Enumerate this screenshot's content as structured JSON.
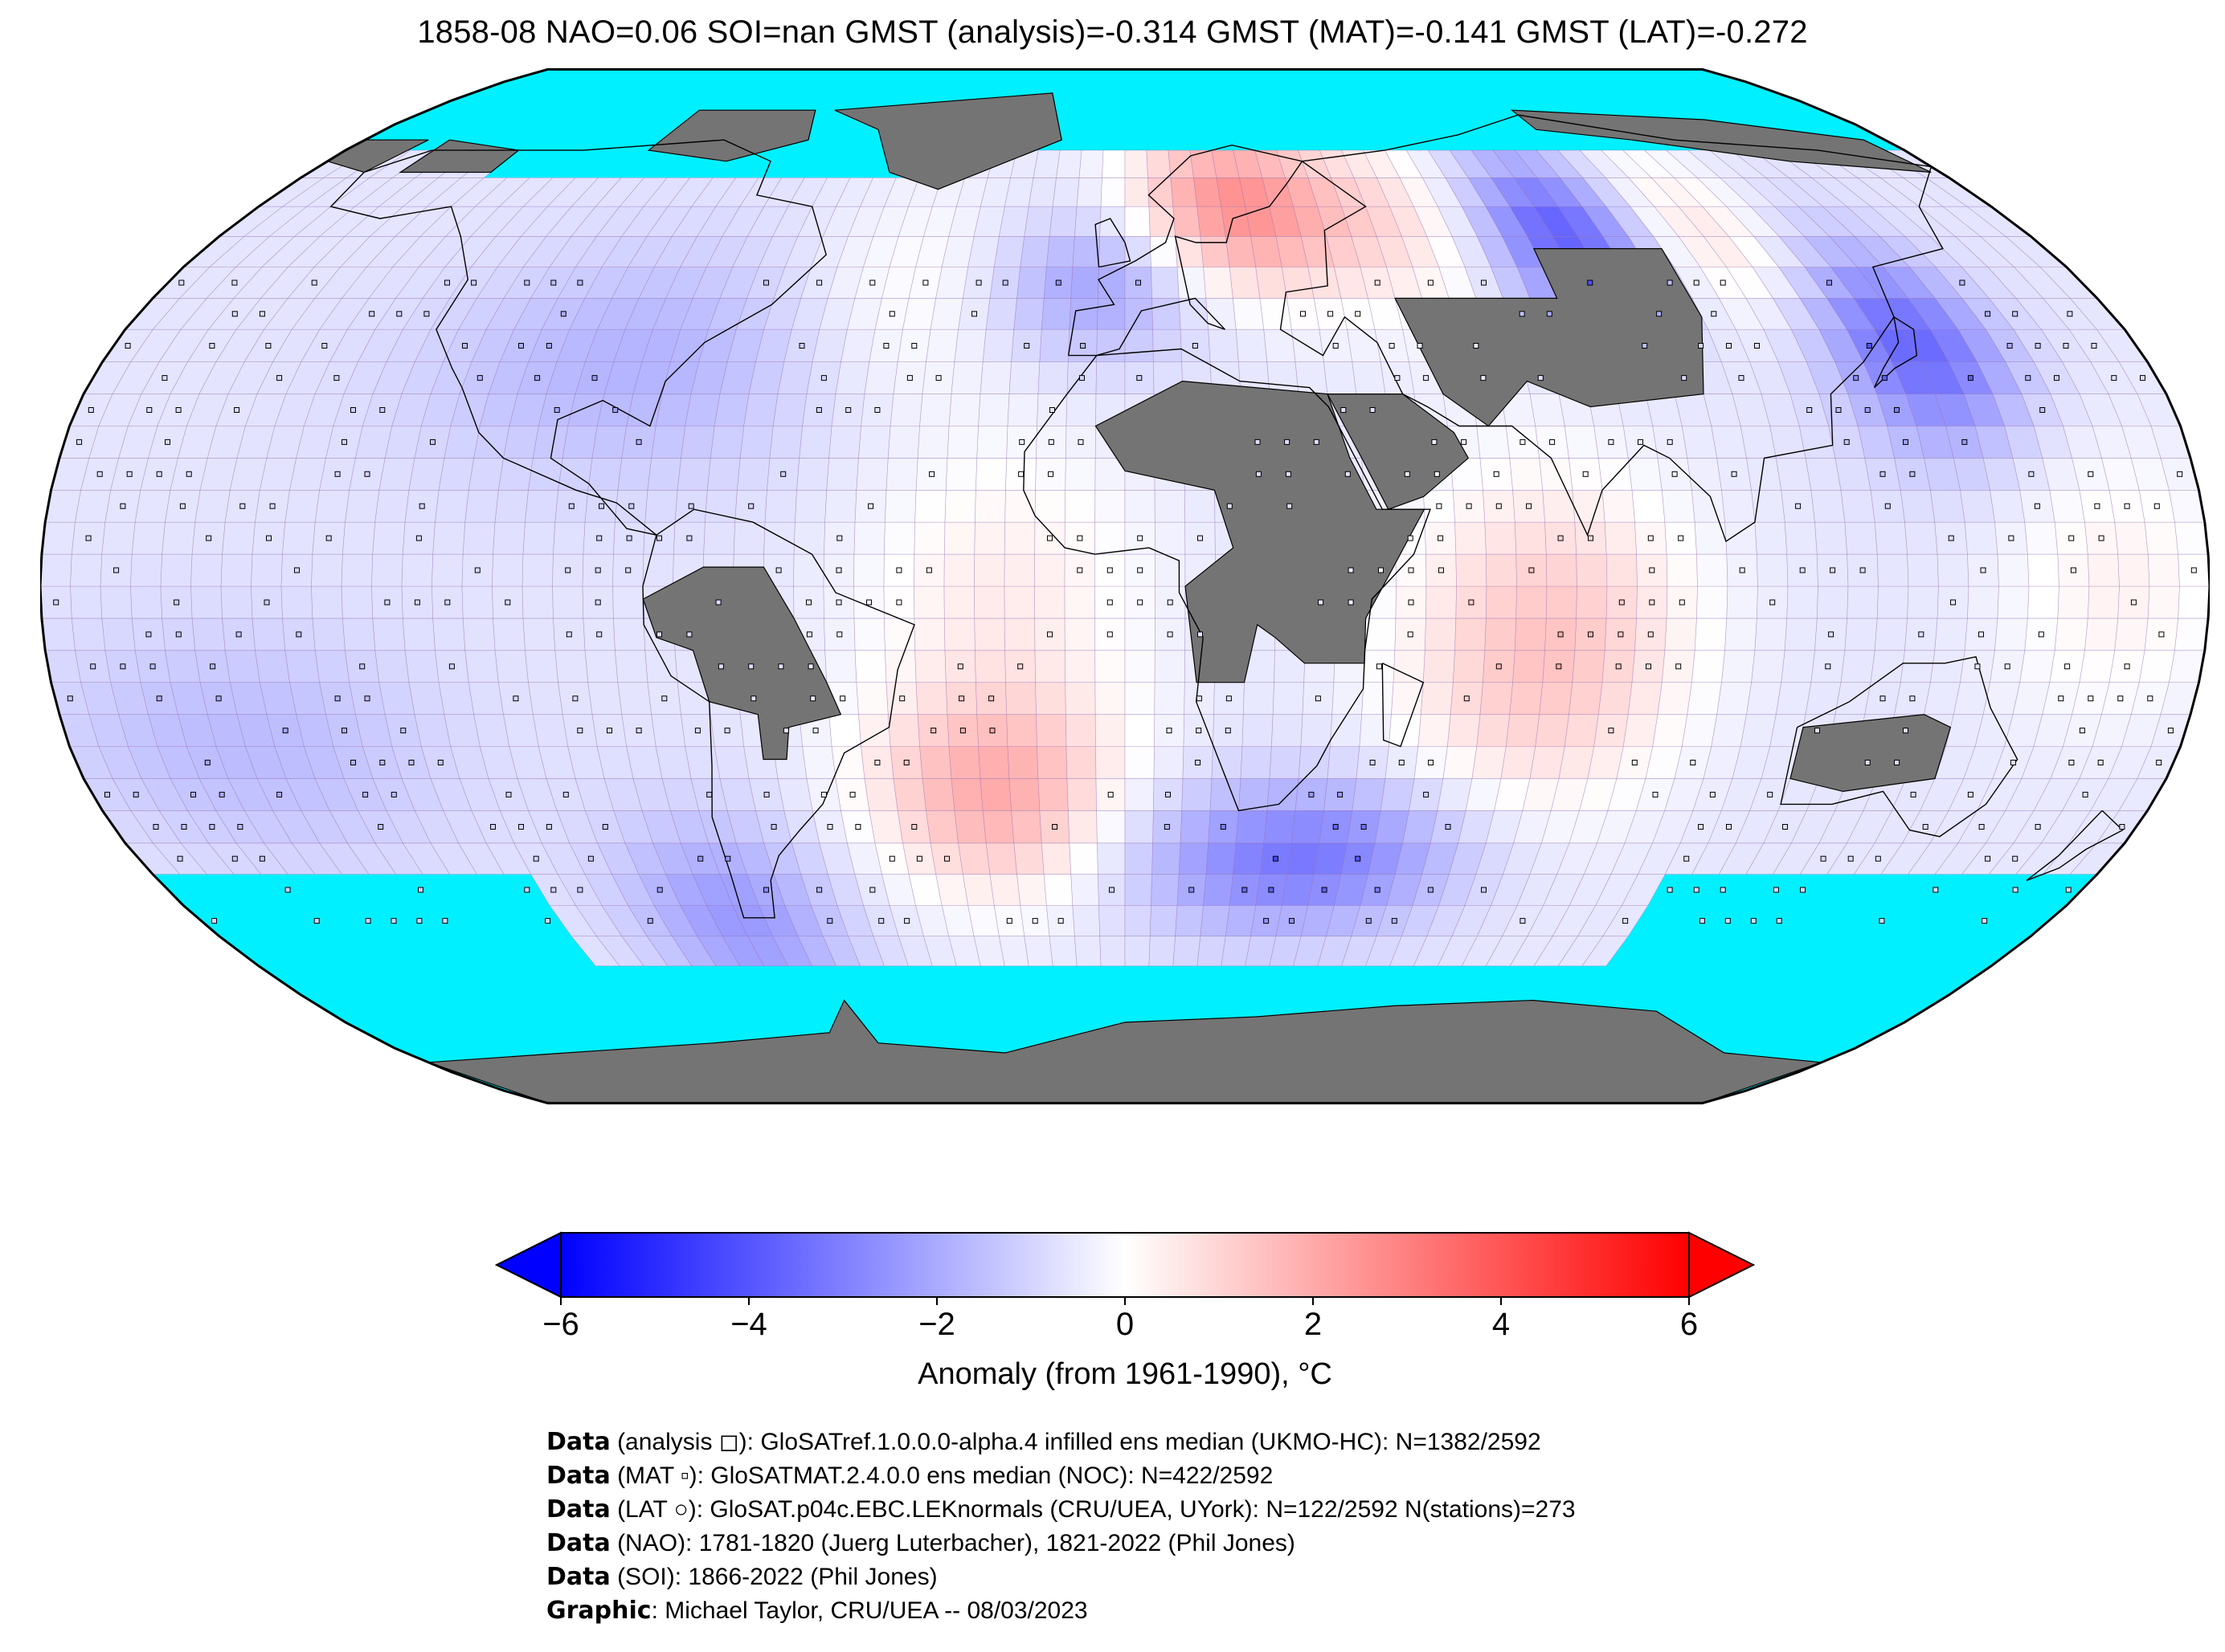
{
  "title": "1858-08 NAO=0.06 SOI=nan GMST (analysis)=-0.314 GMST (MAT)=-0.141 GMST (LAT)=-0.272",
  "colors": {
    "ocean_missing": "#00f0ff",
    "land_missing": "#747474",
    "grid": "#a070b0",
    "outline": "#000000",
    "cmap_min": "#0000ff",
    "cmap_mid": "#ffffff",
    "cmap_max": "#ff0000"
  },
  "colorbar": {
    "label": "Anomaly (from 1961-1990), °C",
    "min": -6,
    "max": 6,
    "ticks": [
      {
        "value": -6,
        "label": "−6"
      },
      {
        "value": -4,
        "label": "−4"
      },
      {
        "value": -2,
        "label": "−2"
      },
      {
        "value": 0,
        "label": "0"
      },
      {
        "value": 2,
        "label": "2"
      },
      {
        "value": 4,
        "label": "4"
      },
      {
        "value": 6,
        "label": "6"
      }
    ],
    "extend": "both"
  },
  "credits": [
    {
      "key": "Data",
      "text": " (analysis ◻): GloSATref.1.0.0.0-alpha.4 infilled ens median (UKMO-HC): N=1382/2592"
    },
    {
      "key": "Data",
      "text": " (MAT ▫): GloSATMAT.2.4.0.0 ens median (NOC): N=422/2592"
    },
    {
      "key": "Data",
      "text": " (LAT ○): GloSAT.p04c.EBC.LEKnormals (CRU/UEA, UYork): N=122/2592 N(stations)=273"
    },
    {
      "key": "Data",
      "text": " (NAO): 1781-1820 (Juerg Luterbacher), 1821-2022 (Phil Jones)"
    },
    {
      "key": "Data",
      "text": " (SOI): 1866-2022 (Phil Jones)"
    },
    {
      "key": "Graphic",
      "text": ": Michael Taylor, CRU/UEA -- 08/03/2023"
    }
  ],
  "map": {
    "projection": "Robinson",
    "grid_resolution_deg": 5,
    "anomaly_regions": [
      {
        "lon": [
          5,
          40
        ],
        "lat": [
          50,
          70
        ],
        "value": 3.2
      },
      {
        "lon": [
          40,
          75
        ],
        "lat": [
          45,
          70
        ],
        "value": 1.2
      },
      {
        "lon": [
          75,
          100
        ],
        "lat": [
          45,
          65
        ],
        "value": -3.5
      },
      {
        "lon": [
          130,
          150
        ],
        "lat": [
          25,
          50
        ],
        "value": -3.0
      },
      {
        "lon": [
          100,
          125
        ],
        "lat": [
          45,
          65
        ],
        "value": 1.5
      },
      {
        "lon": [
          -120,
          -50
        ],
        "lat": [
          20,
          50
        ],
        "value": -1.2
      },
      {
        "lon": [
          -60,
          -20
        ],
        "lat": [
          30,
          60
        ],
        "value": 0.8
      },
      {
        "lon": [
          -40,
          -5
        ],
        "lat": [
          -45,
          -20
        ],
        "value": 2.5
      },
      {
        "lon": [
          5,
          60
        ],
        "lat": [
          -50,
          -35
        ],
        "value": -2.6
      },
      {
        "lon": [
          50,
          90
        ],
        "lat": [
          -35,
          15
        ],
        "value": 2.0
      },
      {
        "lon": [
          -180,
          -120
        ],
        "lat": [
          -40,
          -10
        ],
        "value": -1.0
      },
      {
        "lon": [
          -90,
          -60
        ],
        "lat": [
          -65,
          -40
        ],
        "value": -1.8
      },
      {
        "lon": [
          -40,
          0
        ],
        "lat": [
          -20,
          20
        ],
        "value": 1.0
      },
      {
        "lon": [
          150,
          180
        ],
        "lat": [
          -20,
          20
        ],
        "value": 0.9
      },
      {
        "lon": [
          -20,
          10
        ],
        "lat": [
          40,
          55
        ],
        "value": -1.8
      }
    ]
  }
}
